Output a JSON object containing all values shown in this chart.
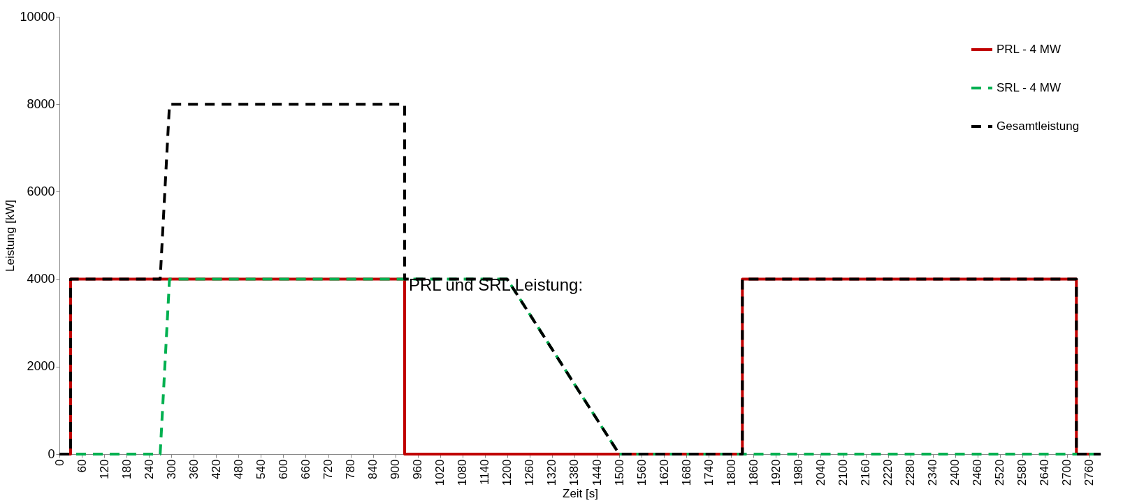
{
  "chart_data": {
    "type": "line",
    "xlabel": "Zeit [s]",
    "ylabel": "Leistung [kW]",
    "xlim": [
      0,
      2790
    ],
    "xticks": [
      0,
      60,
      120,
      180,
      240,
      300,
      360,
      420,
      480,
      540,
      600,
      660,
      720,
      780,
      840,
      900,
      960,
      1020,
      1080,
      1140,
      1200,
      1260,
      1320,
      1380,
      1440,
      1500,
      1560,
      1620,
      1680,
      1740,
      1800,
      1860,
      1920,
      1980,
      2040,
      2100,
      2160,
      2220,
      2280,
      2340,
      2400,
      2460,
      2520,
      2580,
      2640,
      2700,
      2760
    ],
    "ylim": [
      0,
      10000
    ],
    "yticks": [
      0,
      2000,
      4000,
      6000,
      8000,
      10000
    ],
    "grid": false,
    "legend": "top right",
    "marker": "none",
    "annotations": [
      "PRL und SRL Leistung:"
    ],
    "series": [
      {
        "name": "PRL - 4 MW",
        "color": "#c00000",
        "line_style": "solid",
        "x": [
          0,
          30,
          30,
          925,
          925,
          1830,
          1830,
          2725,
          2725,
          2790
        ],
        "values": [
          0,
          0,
          4000,
          4000,
          0,
          0,
          4000,
          4000,
          0,
          0
        ]
      },
      {
        "name": "SRL - 4 MW",
        "color": "#00b050",
        "line_style": "dashed",
        "x": [
          0,
          270,
          295,
          1200,
          1500,
          2790
        ],
        "values": [
          0,
          0,
          4000,
          4000,
          0,
          0
        ]
      },
      {
        "name": "Gesamtleistung",
        "color": "#000000",
        "line_style": "dashed",
        "x": [
          0,
          30,
          30,
          270,
          295,
          925,
          925,
          1200,
          1500,
          1830,
          1830,
          2725,
          2725,
          2790
        ],
        "values": [
          0,
          0,
          4000,
          4000,
          8000,
          8000,
          4000,
          4000,
          0,
          0,
          4000,
          4000,
          0,
          0
        ]
      }
    ]
  }
}
